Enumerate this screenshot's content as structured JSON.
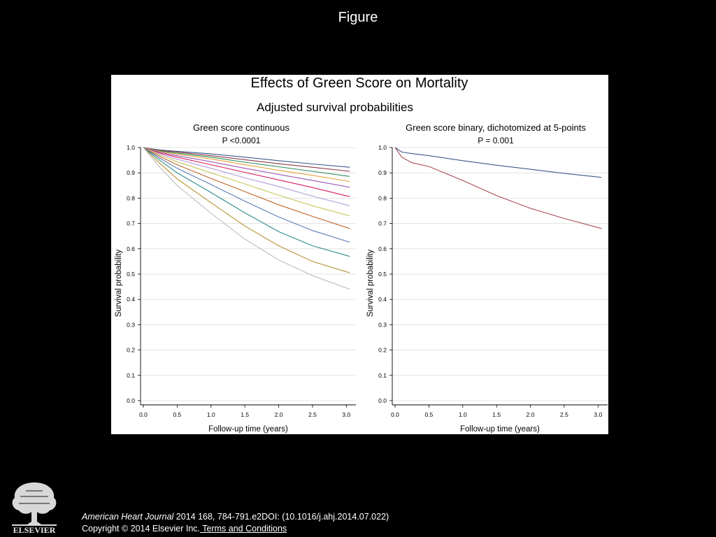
{
  "slide": {
    "title": "Figure",
    "citation": {
      "journal": "American Heart Journal",
      "details": " 2014 168, 784-791.e2DOI: (10.1016/j.ahj.2014.07.022)",
      "copyright": "Copyright © 2014 Elsevier Inc.",
      "terms_link": " Terms and Conditions"
    },
    "logo_text": "ELSEVIER"
  },
  "figure": {
    "title": "Effects of Green Score on Mortality",
    "subtitle": "Adjusted survival probabilities"
  },
  "chart_data": [
    {
      "type": "line",
      "title": "Green score continuous",
      "subtitle": "P <0.0001",
      "xlabel": "Follow-up time (years)",
      "ylabel": "Survival probability",
      "xlim": [
        0,
        3.1
      ],
      "ylim": [
        0,
        1.0
      ],
      "x_ticks": [
        "0.0",
        "0.5",
        "1.0",
        "1.5",
        "2.0",
        "2.5",
        "3.0"
      ],
      "y_ticks": [
        "0.0",
        "0.1",
        "0.2",
        "0.3",
        "0.4",
        "0.5",
        "0.6",
        "0.7",
        "0.8",
        "0.9",
        "1.0"
      ],
      "grid": true,
      "x": [
        0,
        0.25,
        0.5,
        1.0,
        1.5,
        2.0,
        2.5,
        3.05
      ],
      "series": [
        {
          "color": "#3d5a8a",
          "values": [
            1.0,
            0.99,
            0.985,
            0.975,
            0.962,
            0.948,
            0.935,
            0.922
          ]
        },
        {
          "color": "#8b3a4a",
          "values": [
            1.0,
            0.988,
            0.982,
            0.968,
            0.952,
            0.936,
            0.922,
            0.906
          ]
        },
        {
          "color": "#2e8b57",
          "values": [
            1.0,
            0.986,
            0.978,
            0.962,
            0.942,
            0.924,
            0.906,
            0.886
          ]
        },
        {
          "color": "#e8a33a",
          "values": [
            1.0,
            0.984,
            0.974,
            0.955,
            0.932,
            0.91,
            0.89,
            0.866
          ]
        },
        {
          "color": "#9b59b6",
          "values": [
            1.0,
            0.981,
            0.968,
            0.944,
            0.918,
            0.894,
            0.87,
            0.843
          ]
        },
        {
          "color": "#d81b60",
          "values": [
            1.0,
            0.978,
            0.962,
            0.932,
            0.902,
            0.872,
            0.842,
            0.806
          ]
        },
        {
          "color": "#b39ddb",
          "values": [
            1.0,
            0.974,
            0.954,
            0.918,
            0.88,
            0.846,
            0.808,
            0.77
          ]
        },
        {
          "color": "#c8c85a",
          "values": [
            1.0,
            0.97,
            0.944,
            0.9,
            0.856,
            0.812,
            0.77,
            0.73
          ]
        },
        {
          "color": "#c0632a",
          "values": [
            1.0,
            0.964,
            0.932,
            0.878,
            0.826,
            0.774,
            0.728,
            0.68
          ]
        },
        {
          "color": "#5b7db5",
          "values": [
            1.0,
            0.957,
            0.918,
            0.854,
            0.788,
            0.726,
            0.672,
            0.626
          ]
        },
        {
          "color": "#2e8a8a",
          "values": [
            1.0,
            0.948,
            0.9,
            0.822,
            0.742,
            0.668,
            0.612,
            0.57
          ]
        },
        {
          "color": "#b5922e",
          "values": [
            1.0,
            0.936,
            0.876,
            0.782,
            0.69,
            0.612,
            0.55,
            0.505
          ]
        },
        {
          "color": "#bdbdbd",
          "values": [
            1.0,
            0.92,
            0.85,
            0.74,
            0.638,
            0.556,
            0.494,
            0.44
          ]
        }
      ]
    },
    {
      "type": "line",
      "title": "Green score binary, dichotomized at 5-points",
      "subtitle": "P = 0.001",
      "xlabel": "Follow-up time (years)",
      "ylabel": "Survival probability",
      "xlim": [
        0,
        3.1
      ],
      "ylim": [
        0,
        1.0
      ],
      "x_ticks": [
        "0.0",
        "0.5",
        "1.0",
        "1.5",
        "2.0",
        "2.5",
        "3.0"
      ],
      "y_ticks": [
        "0.0",
        "0.1",
        "0.2",
        "0.3",
        "0.4",
        "0.5",
        "0.6",
        "0.7",
        "0.8",
        "0.9",
        "1.0"
      ],
      "grid": true,
      "x": [
        0,
        0.1,
        0.25,
        0.5,
        1.0,
        1.5,
        2.0,
        2.5,
        3.05
      ],
      "series": [
        {
          "color": "#3d5a8a",
          "values": [
            1.0,
            0.982,
            0.976,
            0.968,
            0.948,
            0.93,
            0.914,
            0.898,
            0.882
          ]
        },
        {
          "color": "#a84a55",
          "values": [
            1.0,
            0.962,
            0.94,
            0.925,
            0.87,
            0.81,
            0.76,
            0.72,
            0.68
          ]
        }
      ]
    }
  ]
}
